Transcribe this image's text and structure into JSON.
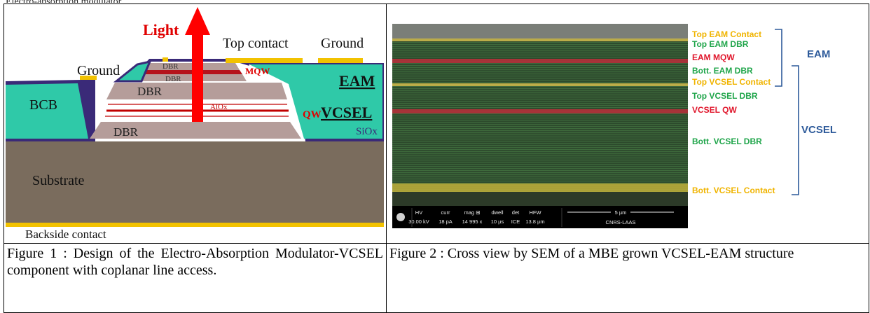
{
  "top_fragment": "Electro-absorption modulator",
  "figure1": {
    "labels": {
      "light": "Light",
      "top_contact": "Top contact",
      "ground_right": "Ground",
      "ground_left": "Ground",
      "dbr_small_top": "DBR",
      "dbr_small_bottom": "DBR",
      "mqw": "MQW",
      "eam": "EAM",
      "dbr_mid": "DBR",
      "bcb": "BCB",
      "alox": "AlOx",
      "qw": "QW",
      "vcsel": "VCSEL",
      "sio": "SiOx",
      "dbr_bottom": "DBR",
      "substrate": "Substrate",
      "backside": "Backside contact"
    },
    "colors": {
      "bcb": "#2fc9a8",
      "dbr": "#b59d9a",
      "substrate": "#7a6c5d",
      "sio": "#3a2a78",
      "contact": "#f2c200",
      "arrow": "#ff0000"
    },
    "caption": "Figure 1 : Design of the Electro-Absorption Modulator-VCSEL component with coplanar line access."
  },
  "figure2": {
    "layer_labels": {
      "top_eam_contact": "Top EAM Contact",
      "top_eam_dbr": "Top EAM DBR",
      "eam_mqw": "EAM MQW",
      "bott_eam_dbr": "Bott. EAM DBR",
      "top_vcsel_contact": "Top VCSEL Contact",
      "top_vcsel_dbr": "Top VCSEL DBR",
      "vcsel_qw": "VCSEL QW",
      "bott_vcsel_dbr": "Bott. VCSEL DBR",
      "bott_vcsel_contact": "Bott. VCSEL Contact"
    },
    "group_labels": {
      "eam": "EAM",
      "vcsel": "VCSEL"
    },
    "colors": {
      "contact": "#f0b400",
      "dbr": "#1fa54a",
      "qw": "#e0162b",
      "group": "#2d5a9a"
    },
    "sem_bar": {
      "hv_label": "HV",
      "hv_value": "30.00 kV",
      "curr_label": "curr",
      "curr_value": "18 pA",
      "mag_label": "mag ⊞",
      "mag_value": "14 995 x",
      "dwell_label": "dwell",
      "dwell_value": "10 µs",
      "det_label": "det",
      "det_value": "ICE",
      "hfw_label": "HFW",
      "hfw_value": "13.8 µm",
      "scale_label": "5 µm",
      "lab": "CNRS-LAAS"
    },
    "caption": "Figure 2 : Cross view by SEM of a MBE grown VCSEL-EAM structure"
  }
}
